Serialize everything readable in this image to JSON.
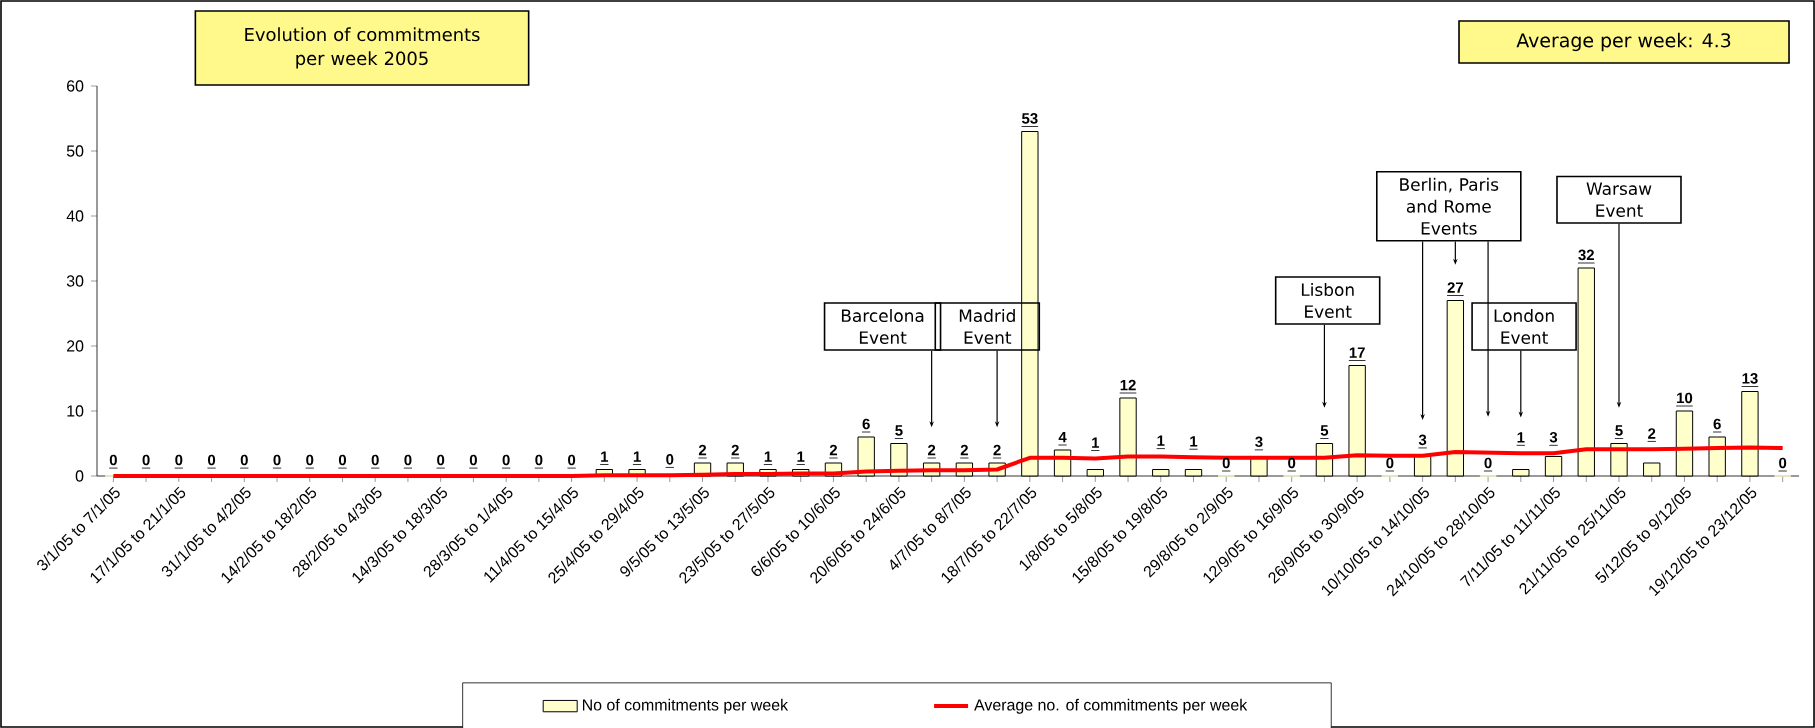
{
  "chart_data": {
    "type": "bar",
    "title": "Evolution of commitments per week 2005",
    "categories": [
      "3/1/05 to 7/1/05",
      null,
      "17/1/05 to 21/1/05",
      null,
      "31/1/05 to 4/2/05",
      null,
      "14/2/05 to 18/2/05",
      null,
      "28/2/05 to 4/3/05",
      null,
      "14/3/05 to 18/3/05",
      null,
      "28/3/05 to 1/4/05",
      null,
      "11/4/05 to 15/4/05",
      null,
      "25/4/05 to 29/4/05",
      null,
      "9/5/05 to 13/5/05",
      null,
      "23/5/05 to 27/5/05",
      null,
      "6/6/05 to 10/6/05",
      null,
      "20/6/05 to 24/6/05",
      null,
      "4/7/05 to 8/7/05",
      null,
      "18/7/05 to 22/7/05",
      null,
      "1/8/05 to 5/8/05",
      null,
      "15/8/05 to 19/8/05",
      null,
      "29/8/05 to 2/9/05",
      null,
      "12/9/05 to 16/9/05",
      null,
      "26/9/05 to 30/9/05",
      null,
      "10/10/05 to 14/10/05",
      null,
      "24/10/05 to 28/10/05",
      null,
      "7/11/05 to 11/11/05",
      null,
      "21/11/05 to 25/11/05",
      null,
      "5/12/05 to 9/12/05",
      null,
      "19/12/05 to 23/12/05",
      null
    ],
    "series": [
      {
        "name": "No of commitments per week",
        "color": "#ffffcc",
        "values": [
          0,
          0,
          0,
          0,
          0,
          0,
          0,
          0,
          0,
          0,
          0,
          0,
          0,
          0,
          0,
          1,
          1,
          0,
          2,
          2,
          1,
          1,
          2,
          6,
          5,
          2,
          2,
          2,
          53,
          4,
          1,
          12,
          1,
          1,
          0,
          3,
          0,
          5,
          17,
          0,
          3,
          27,
          0,
          1,
          3,
          32,
          5,
          2,
          10,
          6,
          13,
          0
        ],
        "value_labels": [
          "0",
          "0",
          "0",
          "0",
          "0",
          "0",
          "0",
          "0",
          "0",
          "0",
          "0",
          "0",
          "0",
          "0",
          "0",
          "1",
          "1",
          "0",
          "2",
          "2",
          "1",
          "1",
          "2",
          "6",
          "5",
          "2",
          "2",
          "2",
          "53",
          "4",
          "1",
          "12",
          "1",
          "1",
          "0",
          "3",
          "0",
          "5",
          "17",
          "0",
          "3",
          "27",
          "0",
          "1",
          "3",
          "32",
          "5",
          "2",
          "10",
          "6",
          "13",
          "0"
        ]
      },
      {
        "name": "Average no. of commitments per week",
        "type": "line",
        "color": "#ff0000",
        "values": [
          0,
          0,
          0,
          0,
          0,
          0,
          0,
          0,
          0,
          0,
          0,
          0,
          0,
          0,
          0,
          0.1,
          0.1,
          0.1,
          0.2,
          0.3,
          0.3,
          0.4,
          0.4,
          0.7,
          0.8,
          0.9,
          0.9,
          1.0,
          2.8,
          2.8,
          2.7,
          3.0,
          3.0,
          2.9,
          2.8,
          2.8,
          2.8,
          2.8,
          3.2,
          3.1,
          3.1,
          3.7,
          3.6,
          3.5,
          3.5,
          4.1,
          4.1,
          4.1,
          4.2,
          4.3,
          4.4,
          4.3
        ]
      }
    ],
    "ylim": [
      0,
      60
    ],
    "yticks": [
      0,
      10,
      20,
      30,
      40,
      50,
      60
    ],
    "grid": false,
    "legend": "bottom",
    "annotations": [
      "Barcelona Event",
      "Madrid Event",
      "Lisbon Event",
      "Berlin, Paris and Rome Events",
      "London Event",
      "Warsaw Event",
      "Average per week: 4.3"
    ]
  }
}
